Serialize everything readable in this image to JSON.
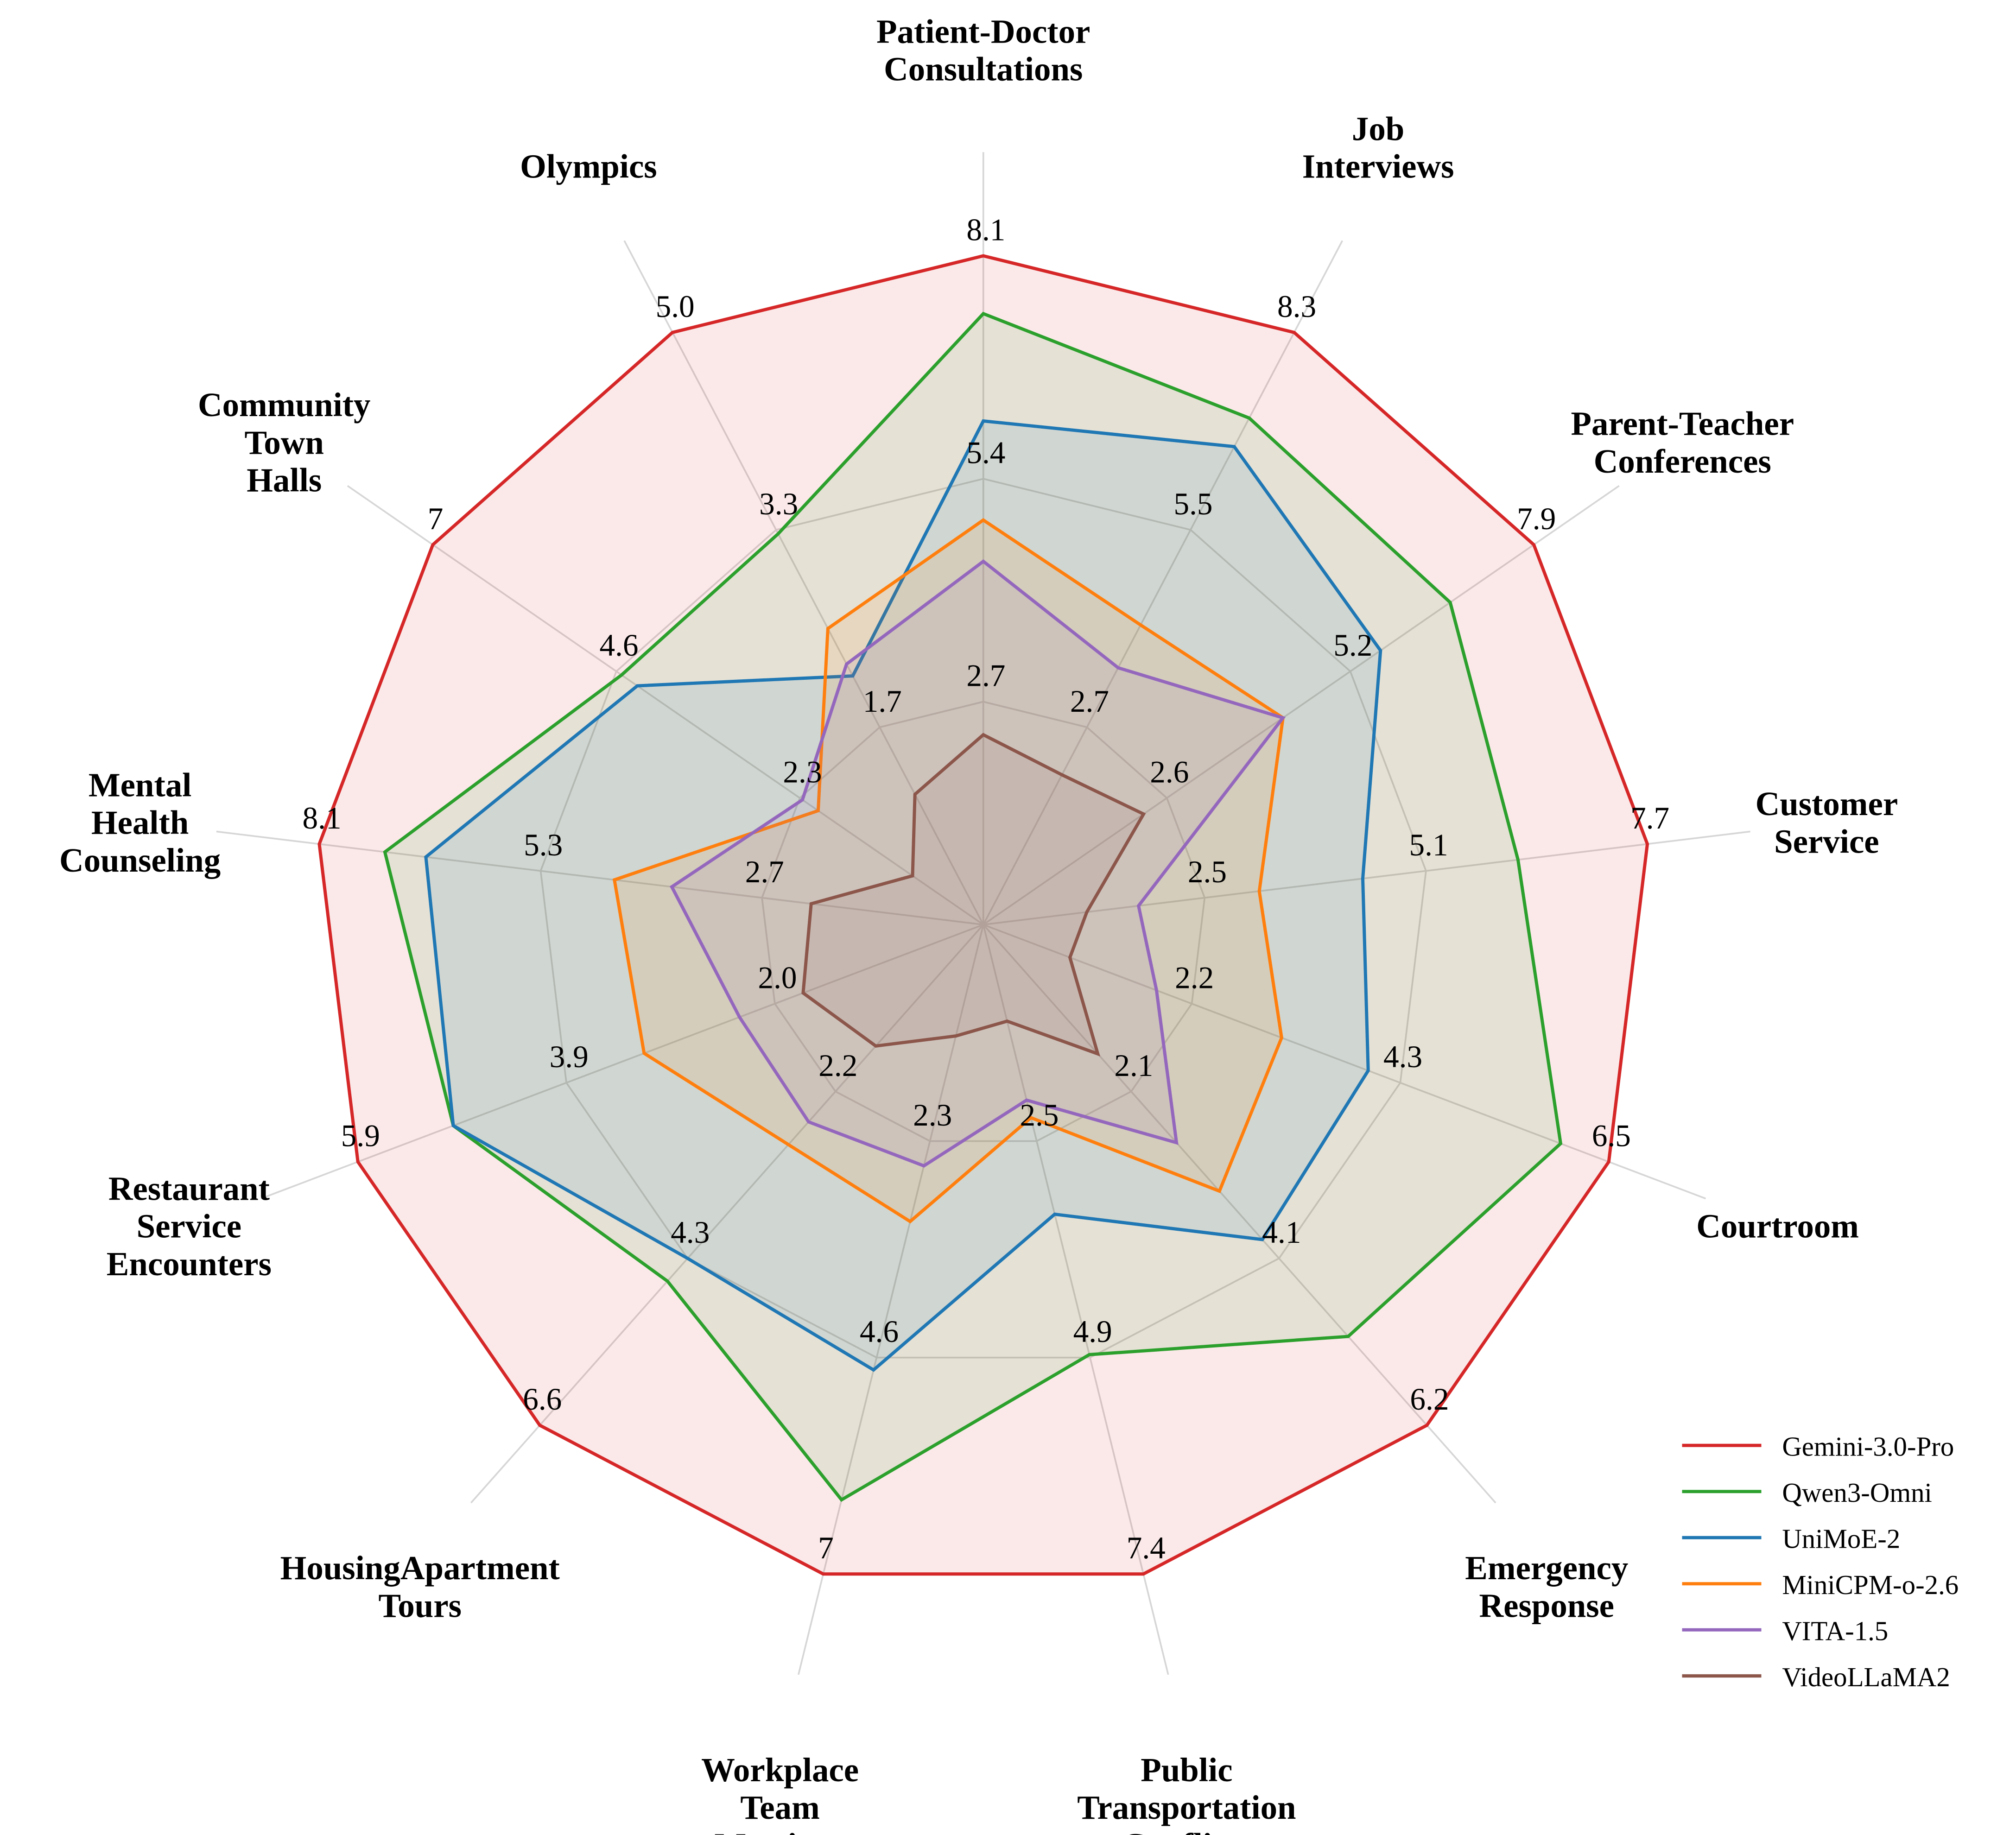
{
  "chart_data": {
    "type": "radar",
    "title": "",
    "axes": [
      {
        "label": "Patient-Doctor\nConsultations",
        "ticks": [
          "2.7",
          "5.4",
          "8.1"
        ],
        "max": 8.1
      },
      {
        "label": "Job\nInterviews",
        "ticks": [
          "2.7",
          "5.5",
          "8.3"
        ],
        "max": 8.3
      },
      {
        "label": "Parent-Teacher\nConferences",
        "ticks": [
          "2.6",
          "5.2",
          "7.9"
        ],
        "max": 7.9
      },
      {
        "label": "Customer\nService",
        "ticks": [
          "2.5",
          "5.1",
          "7.7"
        ],
        "max": 7.7
      },
      {
        "label": "Courtroom",
        "ticks": [
          "2.2",
          "4.3",
          "6.5"
        ],
        "max": 6.5
      },
      {
        "label": "Emergency\nResponse",
        "ticks": [
          "2.1",
          "4.1",
          "6.2"
        ],
        "max": 6.2
      },
      {
        "label": "Public\nTransportation\nConflicts",
        "ticks": [
          "2.5",
          "4.9",
          "7.4"
        ],
        "max": 7.4
      },
      {
        "label": "Workplace\nTeam\nMeetings",
        "ticks": [
          "2.3",
          "4.6",
          "7"
        ],
        "max": 7
      },
      {
        "label": "HousingApartment\nTours",
        "ticks": [
          "2.2",
          "4.3",
          "6.6"
        ],
        "max": 6.6
      },
      {
        "label": "Restaurant\nService\nEncounters",
        "ticks": [
          "2.0",
          "3.9",
          "5.9"
        ],
        "max": 5.9
      },
      {
        "label": "Mental\nHealth\nCounseling",
        "ticks": [
          "2.7",
          "5.3",
          "8.1"
        ],
        "max": 8.1
      },
      {
        "label": "Community\nTown\nHalls",
        "ticks": [
          "2.3",
          "4.6",
          "7"
        ],
        "max": 7
      },
      {
        "label": "Olympics",
        "ticks": [
          "1.7",
          "3.3",
          "5.0"
        ],
        "max": 5.0
      }
    ],
    "series": [
      {
        "name": "Gemini-3.0-Pro",
        "color": "#d62728",
        "values": [
          8.1,
          8.3,
          7.9,
          7.7,
          6.5,
          6.2,
          7.4,
          7,
          6.6,
          5.9,
          8.1,
          7,
          5.0
        ]
      },
      {
        "name": "Qwen3-Omni",
        "color": "#2ca02c",
        "values": [
          7.4,
          7.1,
          6.7,
          6.2,
          6.0,
          5.1,
          4.9,
          6.2,
          4.7,
          5.0,
          7.3,
          4.6,
          3.3
        ]
      },
      {
        "name": "UniMoE-2",
        "color": "#1f77b4",
        "values": [
          6.1,
          6.7,
          5.7,
          4.4,
          4.0,
          3.9,
          3.3,
          4.8,
          4.4,
          5.0,
          6.8,
          4.4,
          2.1
        ]
      },
      {
        "name": "MiniCPM-o-2.6",
        "color": "#ff7f0e",
        "values": [
          4.9,
          4.2,
          4.3,
          3.2,
          3.1,
          3.3,
          2.2,
          3.2,
          2.9,
          3.2,
          4.5,
          2.1,
          2.5
        ]
      },
      {
        "name": "VITA-1.5",
        "color": "#9467bd",
        "values": [
          4.4,
          3.6,
          4.3,
          1.8,
          1.8,
          2.7,
          2.0,
          2.6,
          2.6,
          2.3,
          3.8,
          2.3,
          2.2
        ]
      },
      {
        "name": "VideoLLaMA2",
        "color": "#8c564b",
        "values": [
          2.3,
          2.1,
          2.3,
          1.2,
          0.9,
          1.6,
          1.1,
          1.2,
          1.6,
          1.7,
          2.1,
          0.9,
          1.1
        ]
      }
    ],
    "grid": true,
    "scale": "per-axis, normalized to axis max",
    "legend": {
      "position": "bottom-right"
    }
  }
}
